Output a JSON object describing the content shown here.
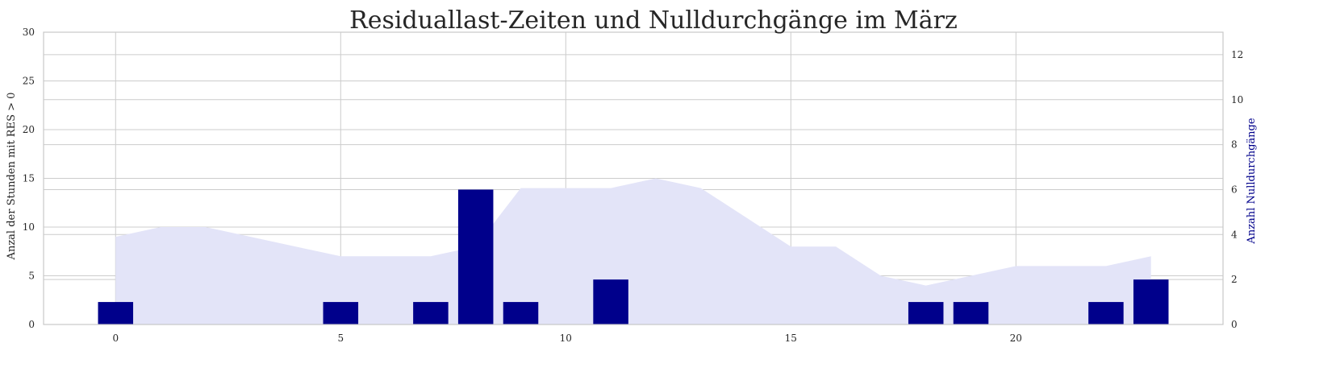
{
  "chart_data": {
    "type": "bar",
    "title": "Residuallast-Zeiten und Nulldurchgänge im März",
    "x": [
      0,
      1,
      2,
      3,
      4,
      5,
      6,
      7,
      8,
      9,
      10,
      11,
      12,
      13,
      14,
      15,
      16,
      17,
      18,
      19,
      20,
      21,
      22,
      23
    ],
    "xticks": [
      0,
      5,
      10,
      15,
      20
    ],
    "xlim": [
      -1.6,
      24.6
    ],
    "grid": true,
    "series": [
      {
        "chart_type": "area",
        "axis": "left",
        "color": "#e3e4f8",
        "values": [
          9,
          10,
          10,
          9,
          8,
          7,
          7,
          7,
          8,
          14,
          14,
          14,
          15,
          14,
          11,
          8,
          8,
          5,
          4,
          5,
          6,
          6,
          6,
          7
        ]
      },
      {
        "chart_type": "bar",
        "axis": "right",
        "color": "#00008b",
        "values": [
          1,
          0,
          0,
          0,
          0,
          1,
          0,
          1,
          6,
          1,
          0,
          2,
          0,
          0,
          0,
          0,
          0,
          0,
          1,
          1,
          0,
          0,
          1,
          2
        ]
      }
    ],
    "y_left": {
      "label": "Anzal der Stunden mit RES > 0",
      "ylim": [
        0,
        30
      ],
      "ticks": [
        0,
        5,
        10,
        15,
        20,
        25,
        30
      ]
    },
    "y_right": {
      "label": "Anzahl Nulldurchgänge",
      "label_color": "#00008b",
      "ylim": [
        0,
        13
      ],
      "ticks": [
        0,
        2,
        4,
        6,
        8,
        10,
        12
      ]
    }
  }
}
